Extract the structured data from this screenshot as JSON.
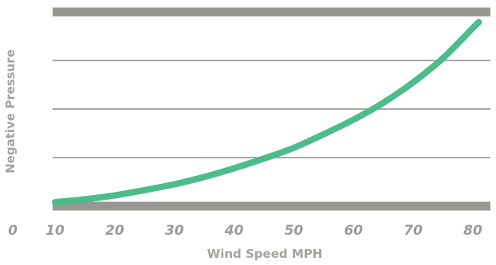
{
  "chart_data": {
    "type": "line",
    "title": "",
    "xlabel": "Wind Speed MPH",
    "ylabel": "Negative Pressure",
    "x_ticks": [
      "0",
      "10",
      "20",
      "30",
      "40",
      "50",
      "60",
      "70",
      "80"
    ],
    "xlim": [
      0,
      82
    ],
    "ylim": [
      0,
      4
    ],
    "grid": true,
    "y_tick_labels_shown": false,
    "series": [
      {
        "color": "#4cbc8a",
        "x": [
          10,
          15,
          20,
          25,
          30,
          35,
          40,
          45,
          50,
          55,
          60,
          65,
          70,
          75,
          80,
          81
        ],
        "y": [
          0.08,
          0.14,
          0.22,
          0.33,
          0.45,
          0.6,
          0.78,
          0.98,
          1.2,
          1.48,
          1.78,
          2.13,
          2.55,
          3.05,
          3.67,
          3.79
        ]
      }
    ]
  },
  "colors": {
    "gridline_heavy": "#979794",
    "gridline_light": "#a8a8a5",
    "curve": "#4cbc8a",
    "text": "#9a9a97"
  }
}
